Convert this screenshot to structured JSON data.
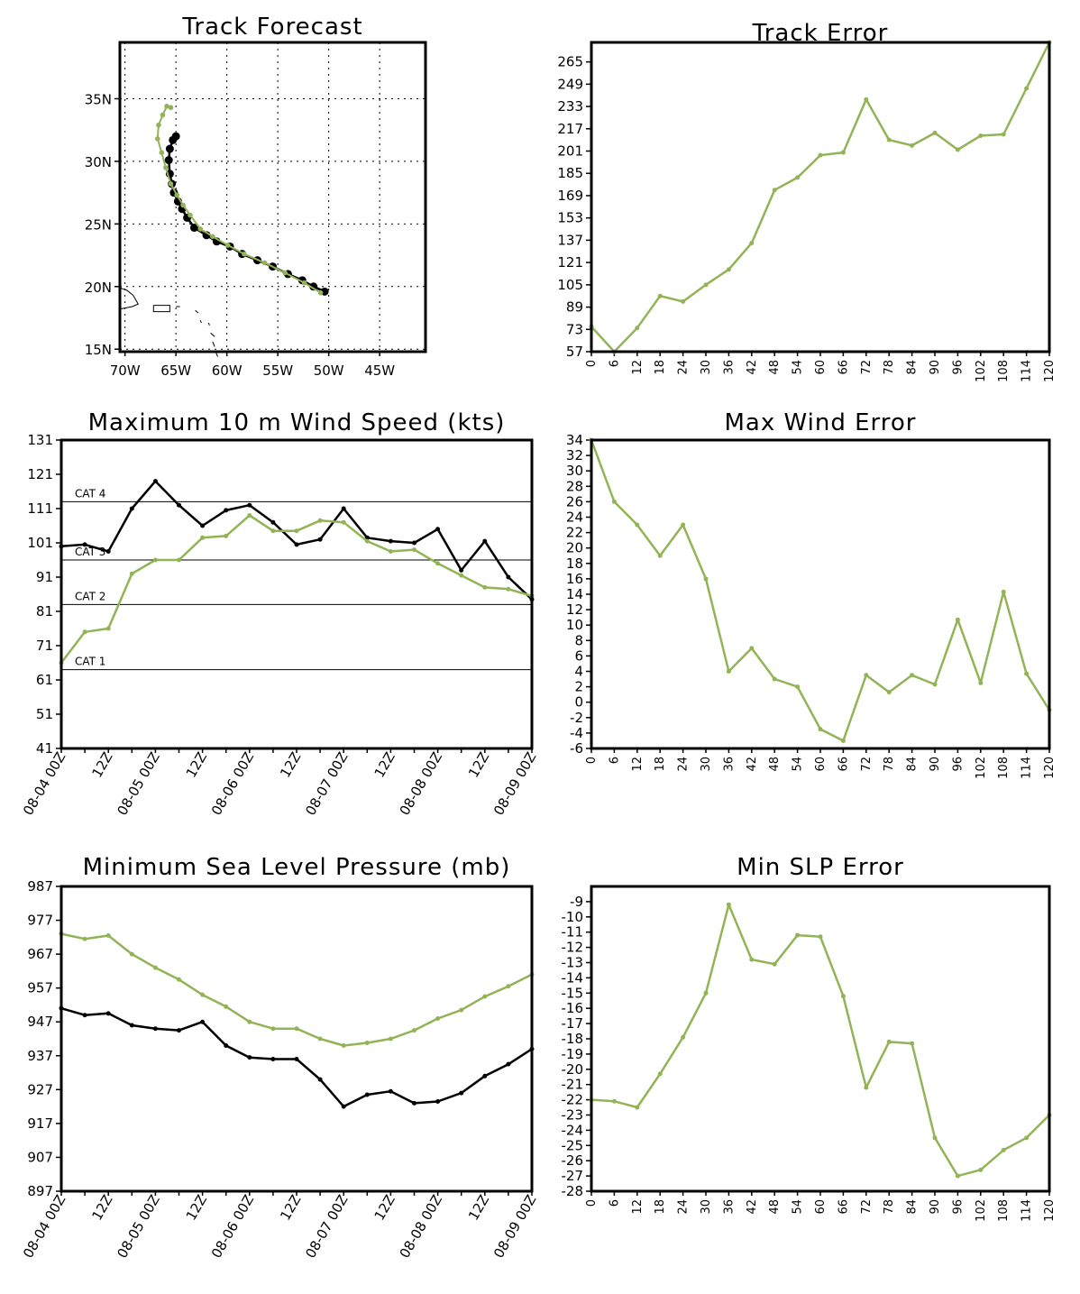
{
  "colors": {
    "forecast": "#92b356",
    "observed": "#000000",
    "axis": "#000000"
  },
  "chart_data": [
    {
      "id": "track",
      "type": "line",
      "title": "Track Forecast",
      "x_ticks": [
        "70W",
        "65W",
        "60W",
        "55W",
        "50W",
        "45W"
      ],
      "x_tick_values": [
        -70,
        -65,
        -60,
        -55,
        -50,
        -45
      ],
      "y_ticks": [
        "15N",
        "20N",
        "25N",
        "30N",
        "35N"
      ],
      "y_tick_values": [
        15,
        20,
        25,
        30,
        35
      ],
      "xlim": [
        -70.5,
        -40.5
      ],
      "ylim": [
        14.8,
        39.5
      ],
      "grid": true,
      "series": [
        {
          "role": "observed",
          "x": [
            -50.4,
            -51.5,
            -52.6,
            -54.0,
            -55.5,
            -57.0,
            -58.5,
            -59.7,
            -61.0,
            -62.0,
            -63.2,
            -63.9,
            -64.4,
            -64.8,
            -65.2,
            -65.4,
            -65.6,
            -65.7,
            -65.6,
            -65.3,
            -65.0
          ],
          "y": [
            19.6,
            20.0,
            20.5,
            21.0,
            21.6,
            22.1,
            22.6,
            23.2,
            23.6,
            24.1,
            24.7,
            25.5,
            26.2,
            26.8,
            27.5,
            28.2,
            29.0,
            30.1,
            31.0,
            31.7,
            32.0
          ]
        },
        {
          "role": "forecast",
          "x": [
            -50.8,
            -52.4,
            -54.3,
            -56.3,
            -58.3,
            -59.9,
            -61.4,
            -62.6,
            -63.6,
            -64.3,
            -64.9,
            -65.5,
            -66.0,
            -66.4,
            -66.8,
            -66.7,
            -66.3,
            -65.9,
            -65.5
          ],
          "y": [
            19.5,
            20.3,
            21.1,
            21.9,
            22.6,
            23.3,
            24.0,
            24.6,
            25.7,
            26.5,
            27.3,
            28.2,
            29.5,
            30.7,
            31.8,
            32.9,
            33.7,
            34.4,
            34.3
          ]
        }
      ]
    },
    {
      "id": "track_error",
      "type": "line",
      "title": "Track Error",
      "x": [
        0,
        6,
        12,
        18,
        24,
        30,
        36,
        42,
        48,
        54,
        60,
        66,
        72,
        78,
        84,
        90,
        96,
        102,
        108,
        114,
        120
      ],
      "x_ticks": [
        "0",
        "6",
        "12",
        "18",
        "24",
        "30",
        "36",
        "42",
        "48",
        "54",
        "60",
        "66",
        "72",
        "78",
        "84",
        "90",
        "96",
        "102",
        "108",
        "114",
        "120"
      ],
      "y_ticks": [
        "57",
        "73",
        "89",
        "105",
        "121",
        "137",
        "153",
        "169",
        "185",
        "201",
        "217",
        "233",
        "249",
        "265"
      ],
      "ylim": [
        57,
        279
      ],
      "series": [
        {
          "role": "forecast",
          "values": [
            75,
            57,
            74,
            97,
            93,
            105,
            116,
            135,
            173,
            182,
            198,
            200,
            238,
            209,
            205,
            214,
            202,
            212,
            213,
            246,
            279
          ]
        }
      ]
    },
    {
      "id": "max_wind",
      "type": "line",
      "title": "Maximum 10 m Wind Speed (kts)",
      "x_ticks": [
        "08-04 00Z",
        "12Z",
        "08-05 00Z",
        "12Z",
        "08-06 00Z",
        "12Z",
        "08-07 00Z",
        "12Z",
        "08-08 00Z",
        "12Z",
        "08-09 00Z"
      ],
      "y_ticks": [
        "41",
        "51",
        "61",
        "71",
        "81",
        "91",
        "101",
        "111",
        "121",
        "131"
      ],
      "ylim": [
        41,
        131
      ],
      "reference_lines": [
        {
          "label": "CAT 4",
          "value": 113
        },
        {
          "label": "CAT 3",
          "value": 96
        },
        {
          "label": "CAT 2",
          "value": 83
        },
        {
          "label": "CAT 1",
          "value": 64
        }
      ],
      "series": [
        {
          "role": "observed",
          "values": [
            100,
            100.5,
            98.5,
            111,
            119,
            112,
            106,
            110.5,
            112,
            107,
            100.5,
            102,
            111,
            102.5,
            101.5,
            101,
            105,
            93,
            101.5,
            91,
            84.5
          ]
        },
        {
          "role": "forecast",
          "values": [
            66,
            75,
            76,
            92,
            96,
            96,
            102.5,
            103,
            109,
            104.5,
            104.5,
            107.5,
            107,
            101.5,
            98.5,
            99,
            95,
            91.5,
            88,
            87.5,
            85.5
          ]
        }
      ]
    },
    {
      "id": "max_wind_error",
      "type": "line",
      "title": "Max Wind Error",
      "x": [
        0,
        6,
        12,
        18,
        24,
        30,
        36,
        42,
        48,
        54,
        60,
        66,
        72,
        78,
        84,
        90,
        96,
        102,
        108,
        114,
        120
      ],
      "x_ticks": [
        "0",
        "6",
        "12",
        "18",
        "24",
        "30",
        "36",
        "42",
        "48",
        "54",
        "60",
        "66",
        "72",
        "78",
        "84",
        "90",
        "96",
        "102",
        "108",
        "114",
        "120"
      ],
      "y_ticks": [
        "-6",
        "-4",
        "-2",
        "0",
        "2",
        "4",
        "6",
        "8",
        "10",
        "12",
        "14",
        "16",
        "18",
        "20",
        "22",
        "24",
        "26",
        "28",
        "30",
        "32",
        "34"
      ],
      "ylim": [
        -6,
        34
      ],
      "series": [
        {
          "role": "forecast",
          "values": [
            34,
            26,
            23,
            19,
            23,
            16,
            4,
            7,
            3,
            2,
            -3.5,
            -5,
            3.5,
            1.3,
            3.5,
            2.3,
            10.7,
            2.5,
            14.3,
            3.7,
            -1
          ]
        }
      ]
    },
    {
      "id": "min_slp",
      "type": "line",
      "title": "Minimum Sea Level Pressure (mb)",
      "x_ticks": [
        "08-04 00Z",
        "12Z",
        "08-05 00Z",
        "12Z",
        "08-06 00Z",
        "12Z",
        "08-07 00Z",
        "12Z",
        "08-08 00Z",
        "12Z",
        "08-09 00Z"
      ],
      "y_ticks": [
        "897",
        "907",
        "917",
        "927",
        "937",
        "947",
        "957",
        "967",
        "977",
        "987"
      ],
      "ylim": [
        897,
        987
      ],
      "series": [
        {
          "role": "observed",
          "values": [
            951,
            949,
            949.5,
            946,
            945,
            944.5,
            947,
            940,
            936.5,
            936,
            936,
            930,
            922,
            925.5,
            926.5,
            923,
            923.5,
            926,
            931,
            934.5,
            939
          ]
        },
        {
          "role": "forecast",
          "values": [
            973,
            971.5,
            972.5,
            967,
            963,
            959.5,
            955,
            951.5,
            947,
            945,
            945,
            942,
            940,
            940.8,
            942,
            944.5,
            948,
            950.5,
            954.5,
            957.5,
            961
          ]
        }
      ]
    },
    {
      "id": "min_slp_error",
      "type": "line",
      "title": "Min SLP Error",
      "x": [
        0,
        6,
        12,
        18,
        24,
        30,
        36,
        42,
        48,
        54,
        60,
        66,
        72,
        78,
        84,
        90,
        96,
        102,
        108,
        114,
        120
      ],
      "x_ticks": [
        "0",
        "6",
        "12",
        "18",
        "24",
        "30",
        "36",
        "42",
        "48",
        "54",
        "60",
        "66",
        "72",
        "78",
        "84",
        "90",
        "96",
        "102",
        "108",
        "114",
        "120"
      ],
      "y_ticks": [
        "-28",
        "-27",
        "-26",
        "-25",
        "-24",
        "-23",
        "-22",
        "-21",
        "-20",
        "-19",
        "-18",
        "-17",
        "-16",
        "-15",
        "-14",
        "-13",
        "-12",
        "-11",
        "-10",
        "-9"
      ],
      "ylim": [
        -28,
        -8
      ],
      "series": [
        {
          "role": "forecast",
          "values": [
            -22,
            -22.1,
            -22.5,
            -20.3,
            -17.9,
            -15,
            -9.2,
            -12.8,
            -13.1,
            -11.2,
            -11.3,
            -15.2,
            -21.2,
            -18.2,
            -18.3,
            -24.5,
            -27,
            -26.6,
            -25.3,
            -24.5,
            -23
          ]
        }
      ]
    }
  ]
}
